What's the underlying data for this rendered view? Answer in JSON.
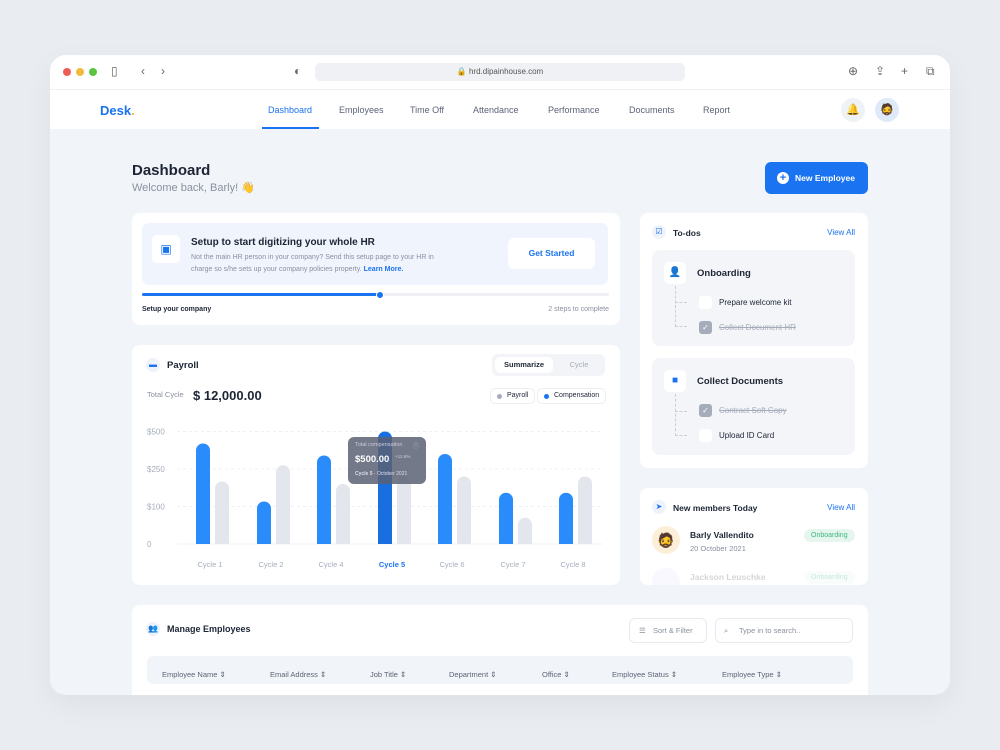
{
  "browser": {
    "url": "hrd.dipainhouse.com"
  },
  "nav": {
    "logo": "Desk",
    "logo_dot": ".",
    "items": [
      "Dashboard",
      "Employees",
      "Time Off",
      "Attendance",
      "Performance",
      "Documents",
      "Report"
    ],
    "active": "Dashboard"
  },
  "header": {
    "title": "Dashboard",
    "welcome": "Welcome back, Barly! 👋",
    "new_employee": "New Employee"
  },
  "setup": {
    "title": "Setup to start digitizing your whole HR",
    "desc": "Not the main HR person in your company? Send this setup page to your HR in charge so s/he sets up your company policies property.",
    "learn_more": "Learn More.",
    "button": "Get Started",
    "progress_label": "Setup your company",
    "steps_left": "2 steps to complete",
    "progress": 0.51
  },
  "payroll": {
    "title": "Payroll",
    "tabs": [
      "Summarize",
      "Cycle"
    ],
    "active_tab": "Summarize",
    "total_label": "Total Cycle",
    "total": "$ 12,000.00",
    "tooltip": {
      "title": "Total compensation",
      "value": "$500.00",
      "change": "+12.6%",
      "cycle": "Cycle 5",
      "date": "October 2021"
    }
  },
  "chart_data": {
    "type": "bar",
    "categories": [
      "Cycle 1",
      "Cycle 2",
      "Cycle 4",
      "Cycle 5",
      "Cycle 6",
      "Cycle 7",
      "Cycle 8"
    ],
    "highlighted": "Cycle 5",
    "yticks": [
      "0",
      "$100",
      "$250",
      "$500"
    ],
    "ytick_values": [
      0,
      100,
      250,
      500
    ],
    "series": [
      {
        "name": "Compensation",
        "color": "#2a8bfa",
        "values": [
          420,
          120,
          340,
          500,
          350,
          155,
          155
        ]
      },
      {
        "name": "Payroll",
        "color": "#e3e6ec",
        "values": [
          200,
          275,
          190,
          220,
          220,
          70,
          220
        ]
      }
    ],
    "legend": "top-right",
    "grid": true
  },
  "todos": {
    "title": "To-dos",
    "view_all": "View All",
    "groups": [
      {
        "title": "Onboarding",
        "items": [
          {
            "text": "Prepare welcome kit",
            "done": false
          },
          {
            "text": "Collect Document HR",
            "done": true
          }
        ]
      },
      {
        "title": "Collect Documents",
        "items": [
          {
            "text": "Contract Soft Copy",
            "done": true
          },
          {
            "text": "Upload ID Card",
            "done": false
          }
        ]
      }
    ]
  },
  "members": {
    "title": "New members Today",
    "view_all": "View All",
    "list": [
      {
        "name": "Barly Vallendito",
        "date": "20 October 2021",
        "status": "Onboarding"
      },
      {
        "name": "Jackson Leuschke",
        "status": "Onboarding"
      }
    ]
  },
  "employees": {
    "title": "Manage Employees",
    "sort_filter": "Sort & Filter",
    "search_placeholder": "Type in to search..",
    "columns": [
      "Employee Name",
      "Email Address",
      "Job Title",
      "Department",
      "Office",
      "Employee Status",
      "Employee Type"
    ]
  }
}
